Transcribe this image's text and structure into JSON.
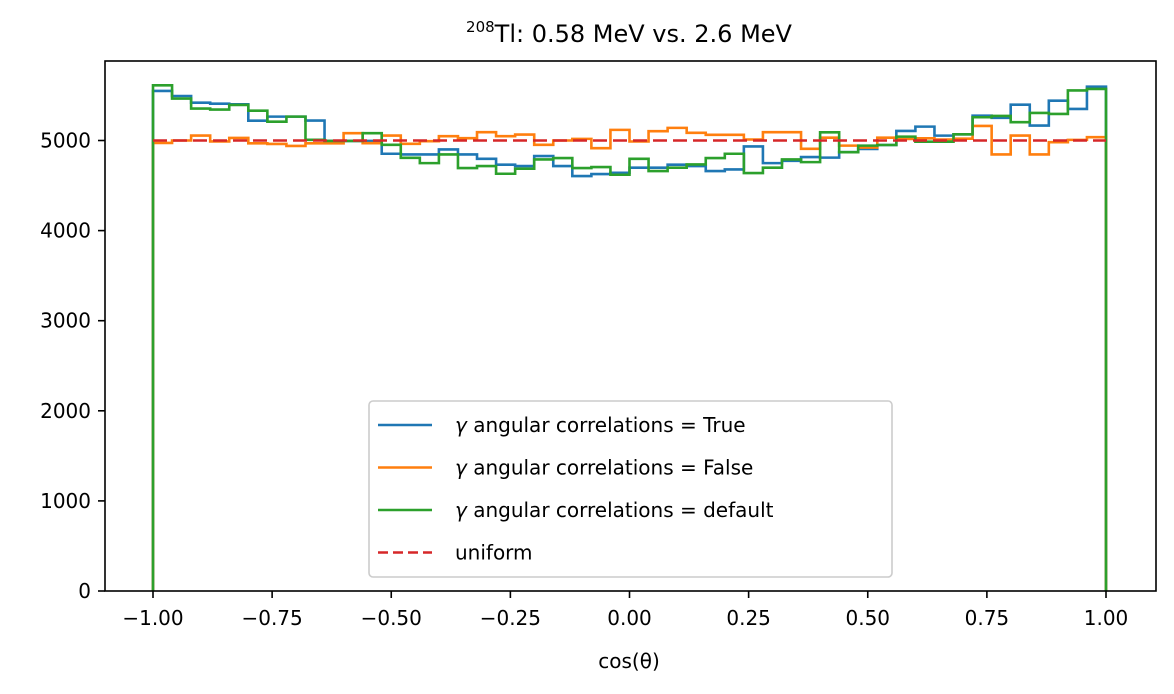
{
  "chart_data": {
    "type": "histogram-step",
    "title": {
      "superscript": "208",
      "main": "Tl: 0.58 MeV vs. 2.6 MeV"
    },
    "xlabel": "cos(θ)",
    "ylabel": "",
    "xlim": [
      -1.1,
      1.1
    ],
    "ylim": [
      0,
      5850
    ],
    "xticks": [
      -1.0,
      -0.75,
      -0.5,
      -0.25,
      0.0,
      0.25,
      0.5,
      0.75,
      1.0
    ],
    "xtick_labels": [
      "−1.00",
      "−0.75",
      "−0.50",
      "−0.25",
      "0.00",
      "0.25",
      "0.50",
      "0.75",
      "1.00"
    ],
    "yticks": [
      0,
      1000,
      2000,
      3000,
      4000,
      5000
    ],
    "ytick_labels": [
      "0",
      "1000",
      "2000",
      "3000",
      "4000",
      "5000"
    ],
    "grid": false,
    "legend_position": "lower-center",
    "bins": {
      "start": -1.0,
      "end": 1.0,
      "count": 50
    },
    "series": [
      {
        "name": "γ angular correlations = True",
        "color": "#1f77b4",
        "style": "step",
        "values": [
          5550,
          5494,
          5420,
          5409,
          5402,
          5220,
          5265,
          5265,
          5221,
          4995,
          4995,
          4995,
          4853,
          4845,
          4845,
          4901,
          4845,
          4797,
          4731,
          4716,
          4827,
          4716,
          4605,
          4627,
          4642,
          4698,
          4698,
          4731,
          4716,
          4661,
          4679,
          4934,
          4749,
          4775,
          4816,
          4810,
          4870,
          4906,
          4950,
          5106,
          5154,
          5054,
          5069,
          5276,
          5251,
          5398,
          5166,
          5442,
          5350,
          5597
        ]
      },
      {
        "name": "γ angular correlations = False",
        "color": "#ff7f0e",
        "style": "step",
        "values": [
          4973,
          5000,
          5055,
          4990,
          5028,
          4969,
          4962,
          4940,
          4969,
          4969,
          5081,
          4970,
          5055,
          4963,
          4992,
          5048,
          5026,
          5092,
          5048,
          5066,
          4952,
          5000,
          5018,
          4915,
          5118,
          4989,
          5103,
          5140,
          5085,
          5063,
          5063,
          5011,
          5092,
          5092,
          4908,
          5031,
          4943,
          4921,
          5031,
          5017,
          5024,
          5010,
          5020,
          5162,
          4845,
          5055,
          4845,
          4981,
          5007,
          5037
        ]
      },
      {
        "name": "γ angular correlations = default",
        "color": "#2ca02c",
        "style": "step",
        "values": [
          5613,
          5465,
          5354,
          5343,
          5395,
          5331,
          5209,
          5265,
          5008,
          4995,
          4995,
          5081,
          4952,
          4808,
          4749,
          4845,
          4694,
          4716,
          4631,
          4687,
          4790,
          4805,
          4694,
          4705,
          4620,
          4797,
          4661,
          4698,
          4734,
          4805,
          4853,
          4639,
          4698,
          4790,
          4760,
          5091,
          4870,
          4943,
          4950,
          5043,
          4987,
          4987,
          5069,
          5258,
          5273,
          5203,
          5306,
          5295,
          5556,
          5572
        ]
      },
      {
        "name": "uniform",
        "color": "#d62728",
        "style": "dashed",
        "x": [
          -1.0,
          1.0
        ],
        "y": [
          5000,
          5000
        ]
      }
    ],
    "legend": [
      {
        "prefix": "γ",
        "label": " angular correlations = True",
        "color": "#1f77b4",
        "style": "solid"
      },
      {
        "prefix": "γ",
        "label": " angular correlations = False",
        "color": "#ff7f0e",
        "style": "solid"
      },
      {
        "prefix": "γ",
        "label": " angular correlations = default",
        "color": "#2ca02c",
        "style": "solid"
      },
      {
        "prefix": "",
        "label": "uniform",
        "color": "#d62728",
        "style": "dashed"
      }
    ]
  }
}
